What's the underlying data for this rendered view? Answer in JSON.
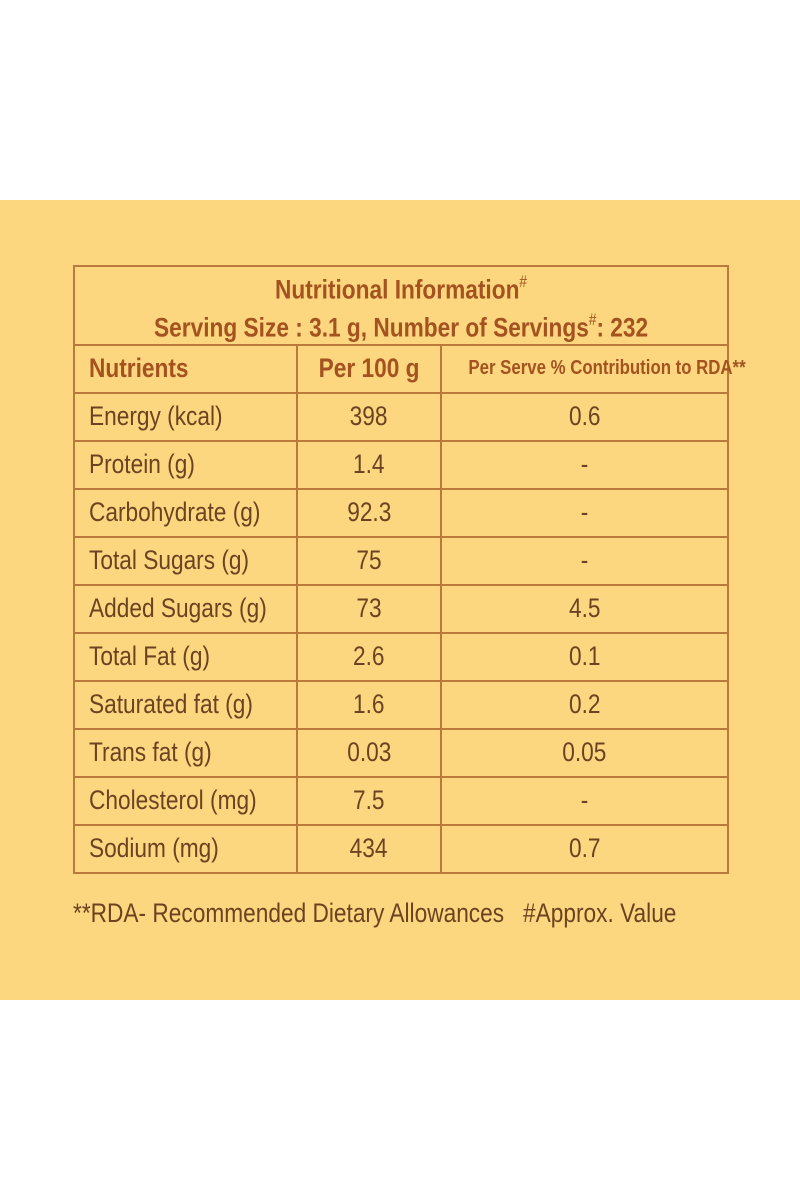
{
  "header": {
    "title": "Nutritional Information",
    "title_mark": "#",
    "serving": "Serving Size : 3.1 g, Number of Servings",
    "serving_mark": "#",
    "serving_count": ": 232"
  },
  "table": {
    "columns": [
      "Nutrients",
      "Per 100 g",
      "Per Serve % Contribution to RDA**"
    ],
    "rows": [
      [
        "Energy (kcal)",
        "398",
        "0.6"
      ],
      [
        "Protein (g)",
        "1.4",
        "-"
      ],
      [
        "Carbohydrate (g)",
        "92.3",
        "-"
      ],
      [
        "Total Sugars (g)",
        "75",
        "-"
      ],
      [
        "Added Sugars (g)",
        "73",
        "4.5"
      ],
      [
        "Total Fat (g)",
        "2.6",
        "0.1"
      ],
      [
        "Saturated fat (g)",
        "1.6",
        "0.2"
      ],
      [
        "Trans fat (g)",
        "0.03",
        "0.05"
      ],
      [
        "Cholesterol (mg)",
        "7.5",
        "-"
      ],
      [
        "Sodium (mg)",
        "434",
        "0.7"
      ]
    ]
  },
  "footer": {
    "rda_note": "**RDA- Recommended Dietary Allowances",
    "approx_note": "#Approx. Value"
  }
}
